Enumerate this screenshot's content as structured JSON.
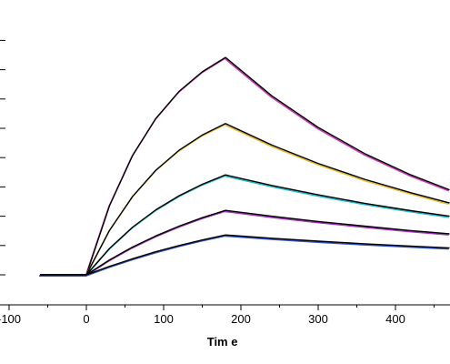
{
  "chart_data": {
    "type": "line",
    "title": "",
    "xlabel": "Tim e",
    "ylabel": "",
    "xlim": [
      -110,
      470
    ],
    "ylim": [
      -0.5,
      8.5
    ],
    "x_ticks": [
      "-100",
      "0",
      "100",
      "200",
      "300",
      "400"
    ],
    "x_tick_values": [
      -100,
      0,
      100,
      200,
      300,
      400
    ],
    "y_tick_values": [
      0,
      1,
      2,
      3,
      4,
      5,
      6,
      7,
      8
    ],
    "y_tick_labels_visible": false,
    "grid": false,
    "legend": "none",
    "association_end": 180,
    "baseline_start": -60,
    "series": [
      {
        "color": "#cc3ab8",
        "x": [
          -60,
          0,
          30,
          60,
          90,
          120,
          150,
          180,
          240,
          300,
          360,
          420,
          470
        ],
        "y": [
          0.0,
          0.0,
          2.36,
          4.08,
          5.34,
          6.26,
          6.93,
          7.42,
          6.11,
          5.03,
          4.14,
          3.41,
          2.9
        ]
      },
      {
        "color": "#e8b830",
        "x": [
          -60,
          0,
          30,
          60,
          90,
          120,
          150,
          180,
          240,
          300,
          360,
          420,
          470
        ],
        "y": [
          0.0,
          0.0,
          1.52,
          2.68,
          3.57,
          4.25,
          4.77,
          5.16,
          4.43,
          3.8,
          3.26,
          2.8,
          2.45
        ]
      },
      {
        "color": "#20b8c8",
        "x": [
          -60,
          0,
          30,
          60,
          90,
          120,
          150,
          180,
          240,
          300,
          360,
          420,
          470
        ],
        "y": [
          0.0,
          0.0,
          0.9,
          1.63,
          2.22,
          2.7,
          3.09,
          3.41,
          3.05,
          2.73,
          2.44,
          2.19,
          2.0
        ]
      },
      {
        "color": "#a030c0",
        "x": [
          -60,
          0,
          30,
          60,
          90,
          120,
          150,
          180,
          240,
          300,
          360,
          420,
          470
        ],
        "y": [
          0.0,
          0.0,
          0.51,
          0.95,
          1.33,
          1.66,
          1.95,
          2.2,
          2.0,
          1.82,
          1.66,
          1.51,
          1.4
        ]
      },
      {
        "color": "#3050c8",
        "x": [
          -60,
          0,
          30,
          60,
          90,
          120,
          150,
          180,
          240,
          300,
          360,
          420,
          470
        ],
        "y": [
          0.0,
          0.0,
          0.29,
          0.55,
          0.79,
          1.0,
          1.19,
          1.36,
          1.25,
          1.15,
          1.06,
          0.98,
          0.92
        ]
      }
    ]
  }
}
